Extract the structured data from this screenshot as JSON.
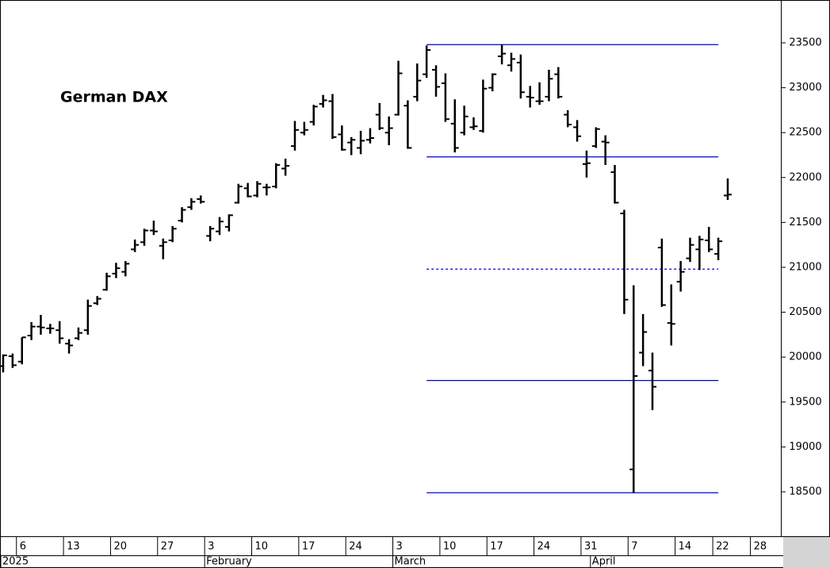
{
  "chart_data": {
    "type": "ohlc",
    "title": "German DAX",
    "color": "#000000",
    "categories": [
      null,
      null,
      "6",
      null,
      null,
      null,
      null,
      "13",
      null,
      null,
      null,
      null,
      "20",
      null,
      null,
      null,
      null,
      "27",
      null,
      null,
      null,
      null,
      "3",
      null,
      null,
      null,
      null,
      "10",
      null,
      null,
      null,
      null,
      "17",
      null,
      null,
      null,
      null,
      "24",
      null,
      null,
      null,
      null,
      "3",
      null,
      null,
      null,
      null,
      "10",
      null,
      null,
      null,
      null,
      "17",
      null,
      null,
      null,
      null,
      "24",
      null,
      null,
      null,
      null,
      "31",
      null,
      null,
      null,
      null,
      "7",
      null,
      null,
      null,
      null,
      "14",
      null,
      null,
      null,
      "22",
      null,
      null,
      null,
      "28",
      null,
      null
    ],
    "months": [
      {
        "label": "2025",
        "start": 0
      },
      {
        "label": "February",
        "start": 22
      },
      {
        "label": "March",
        "start": 42
      },
      {
        "label": "April",
        "start": 63
      }
    ],
    "open": [
      19900,
      20010,
      19950,
      20240,
      20340,
      20320,
      20300,
      20150,
      20210,
      20300,
      20600,
      20750,
      20930,
      20950,
      21200,
      21280,
      21410,
      21240,
      21300,
      21520,
      21670,
      21760,
      21350,
      21400,
      21450,
      21720,
      21880,
      21800,
      21890,
      21900,
      22100,
      22350,
      22500,
      22620,
      22820,
      22850,
      22480,
      22390,
      22330,
      22420,
      22700,
      22500,
      22700,
      22800,
      22900,
      23150,
      23200,
      23050,
      22600,
      22500,
      22560,
      22520,
      23000,
      23350,
      23250,
      23280,
      22900,
      22850,
      22900,
      23150,
      22700,
      22560,
      22150,
      22350,
      22400,
      22060,
      21600,
      18750,
      20050,
      19850,
      21220,
      20380,
      20840,
      21100,
      21200,
      21300,
      21150,
      21800,
      null,
      null,
      null,
      null,
      null
    ],
    "high": [
      20030,
      20040,
      20220,
      20390,
      20470,
      20370,
      20400,
      20200,
      20330,
      20640,
      20680,
      20940,
      21050,
      21070,
      21310,
      21430,
      21520,
      21320,
      21460,
      21670,
      21770,
      21800,
      21460,
      21560,
      21590,
      21930,
      21940,
      21960,
      21930,
      22160,
      22210,
      22630,
      22620,
      22810,
      22920,
      22930,
      22580,
      22450,
      22520,
      22550,
      22830,
      22680,
      23300,
      22860,
      23270,
      23470,
      23250,
      23160,
      22870,
      22800,
      22670,
      23090,
      23160,
      23480,
      23390,
      23370,
      23020,
      23060,
      23200,
      23230,
      22750,
      22640,
      22300,
      22560,
      22470,
      22140,
      21640,
      20800,
      20480,
      20050,
      21320,
      20810,
      21070,
      21330,
      21350,
      21450,
      21330,
      21990,
      null,
      null,
      null,
      null,
      null
    ],
    "low": [
      19830,
      19880,
      19920,
      20190,
      20250,
      20260,
      20150,
      20040,
      20190,
      20250,
      20580,
      20740,
      20880,
      20900,
      21170,
      21240,
      21360,
      21090,
      21280,
      21500,
      21640,
      21710,
      21290,
      21360,
      21400,
      21710,
      21780,
      21780,
      21800,
      21880,
      22020,
      22300,
      22470,
      22580,
      22780,
      22430,
      22300,
      22250,
      22260,
      22380,
      22530,
      22360,
      22690,
      22320,
      22850,
      23110,
      22900,
      22620,
      22280,
      22470,
      22530,
      22500,
      22960,
      23260,
      23180,
      22880,
      22780,
      22810,
      22850,
      22880,
      22560,
      22400,
      22000,
      22330,
      22140,
      21710,
      20480,
      18490,
      19900,
      19410,
      20560,
      20130,
      20730,
      21060,
      20970,
      21170,
      21080,
      21750,
      null,
      null,
      null,
      null,
      null
    ],
    "close": [
      20020,
      19910,
      20220,
      20340,
      20330,
      20320,
      20210,
      20130,
      20270,
      20570,
      20650,
      20900,
      20990,
      21040,
      21250,
      21410,
      21400,
      21280,
      21430,
      21640,
      21730,
      21730,
      21430,
      21510,
      21580,
      21900,
      21790,
      21930,
      21890,
      22140,
      22130,
      22530,
      22530,
      22790,
      22860,
      22450,
      22310,
      22420,
      22410,
      22440,
      22550,
      22550,
      23160,
      22330,
      23080,
      23420,
      23010,
      22650,
      22330,
      22680,
      22570,
      22990,
      23150,
      23380,
      23320,
      22950,
      22890,
      22850,
      23100,
      22900,
      22590,
      22460,
      22160,
      22540,
      22390,
      21720,
      20640,
      19790,
      20280,
      19670,
      20580,
      20370,
      20950,
      21250,
      21310,
      21200,
      21290,
      21810,
      null,
      null,
      null,
      null,
      null
    ],
    "ylim": [
      18005,
      23977
    ],
    "yticks": [
      18500,
      19000,
      19500,
      20000,
      20500,
      21000,
      21500,
      22000,
      22500,
      23000,
      23500
    ],
    "levels": [
      {
        "value": 23480,
        "style": "solid",
        "color": "#0000cc",
        "span": [
          45,
          76
        ]
      },
      {
        "value": 22230,
        "style": "solid",
        "color": "#0000cc",
        "span": [
          45,
          76
        ]
      },
      {
        "value": 20980,
        "style": "dotted",
        "color": "#0000cc",
        "span": [
          45,
          76
        ]
      },
      {
        "value": 19740,
        "style": "solid",
        "color": "#0000cc",
        "span": [
          45,
          76
        ]
      },
      {
        "value": 18490,
        "style": "solid",
        "color": "#0000cc",
        "span": [
          45,
          76
        ]
      }
    ]
  }
}
